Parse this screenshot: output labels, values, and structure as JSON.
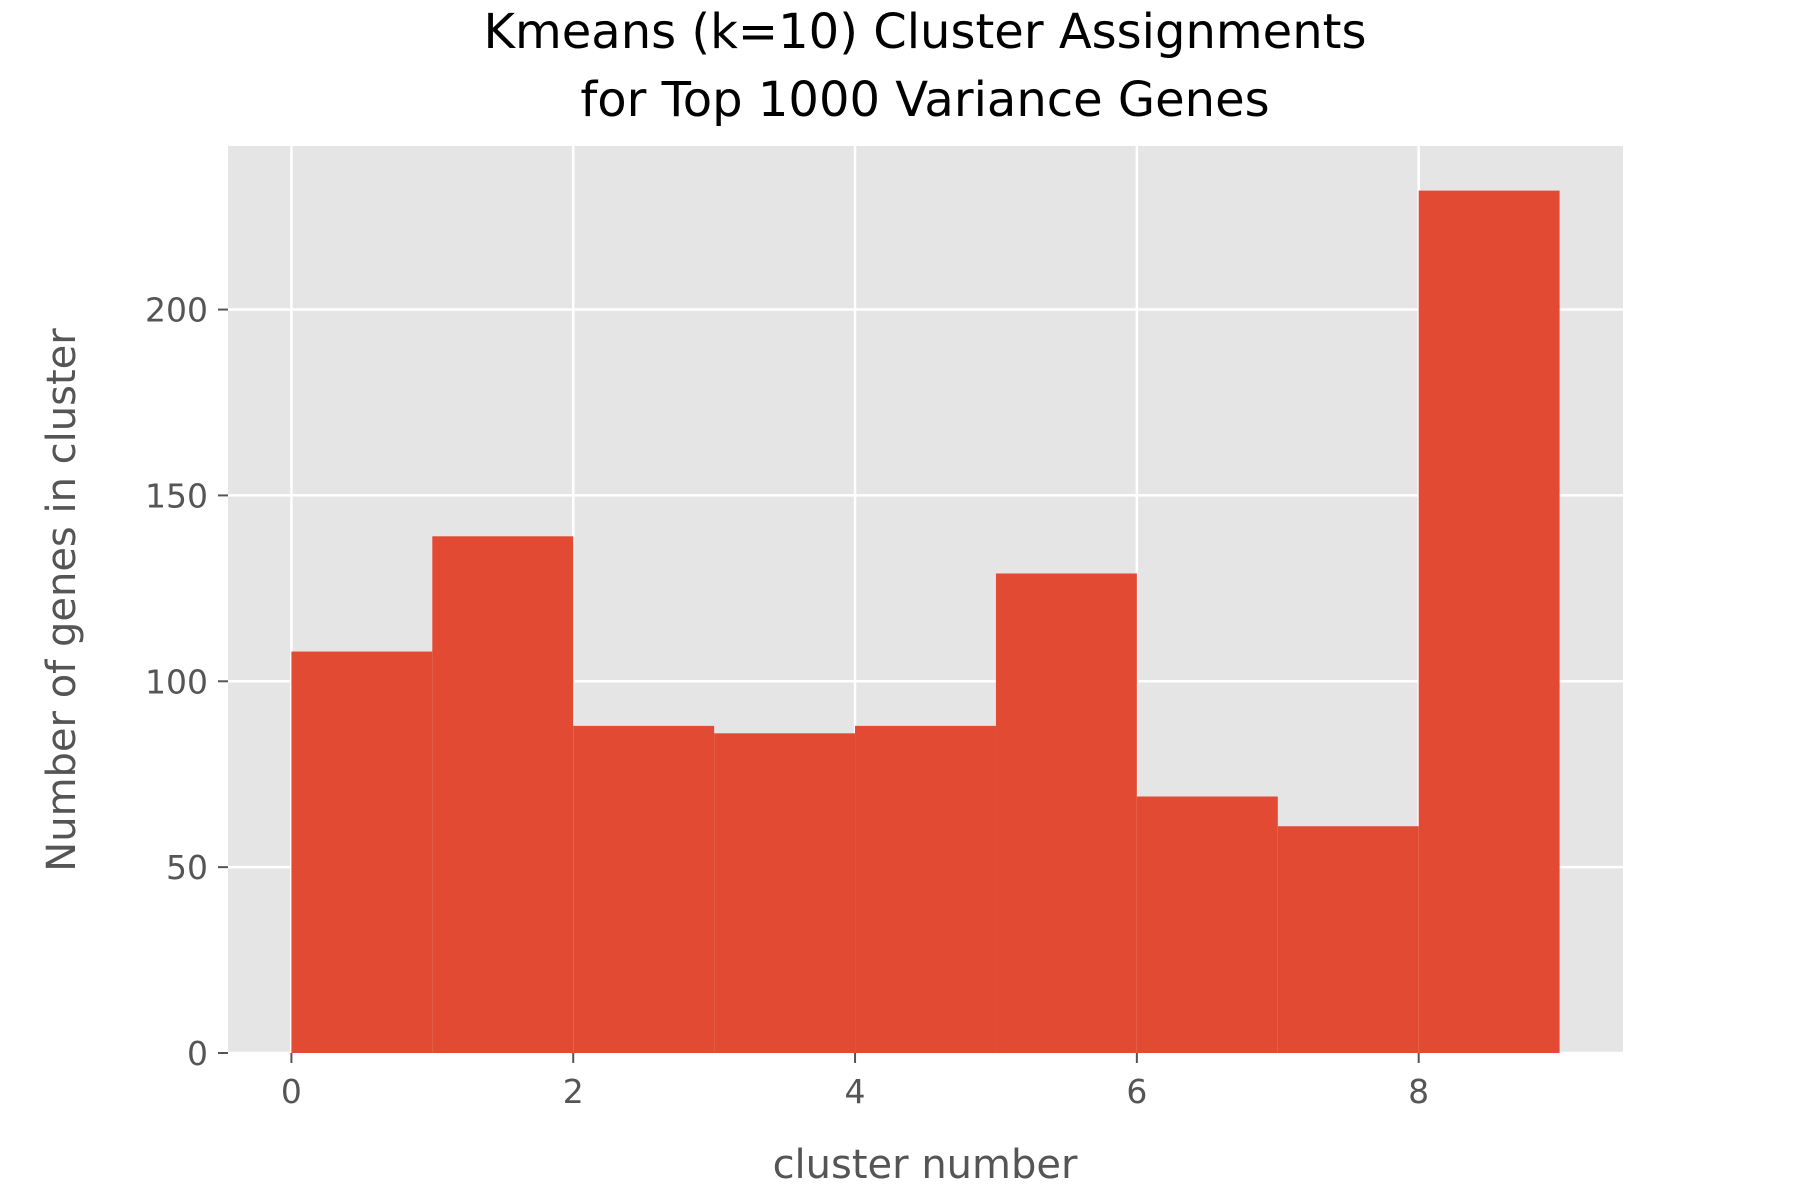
{
  "chart_data": {
    "type": "bar",
    "histogram": true,
    "title_lines": [
      "Kmeans (k=10) Cluster Assignments",
      "for Top 1000 Variance Genes"
    ],
    "xlabel": "cluster number",
    "ylabel": "Number of genes in cluster",
    "bins": [
      {
        "start": 0,
        "end": 1,
        "value": 108
      },
      {
        "start": 1,
        "end": 2,
        "value": 139
      },
      {
        "start": 2,
        "end": 3,
        "value": 88
      },
      {
        "start": 3,
        "end": 4,
        "value": 86
      },
      {
        "start": 4,
        "end": 5,
        "value": 88
      },
      {
        "start": 5,
        "end": 6,
        "value": 129
      },
      {
        "start": 6,
        "end": 7,
        "value": 69
      },
      {
        "start": 7,
        "end": 8,
        "value": 61
      },
      {
        "start": 8,
        "end": 9,
        "value": 232
      }
    ],
    "xlim": [
      -0.45,
      9.45
    ],
    "ylim": [
      0,
      244
    ],
    "xticks": [
      0,
      2,
      4,
      6,
      8
    ],
    "yticks": [
      0,
      50,
      100,
      150,
      200
    ],
    "grid": true,
    "colors": {
      "bar": "#e24a33",
      "plot_background": "#e5e5e5",
      "grid": "#ffffff",
      "tick_text": "#555555",
      "title": "#000000"
    }
  }
}
